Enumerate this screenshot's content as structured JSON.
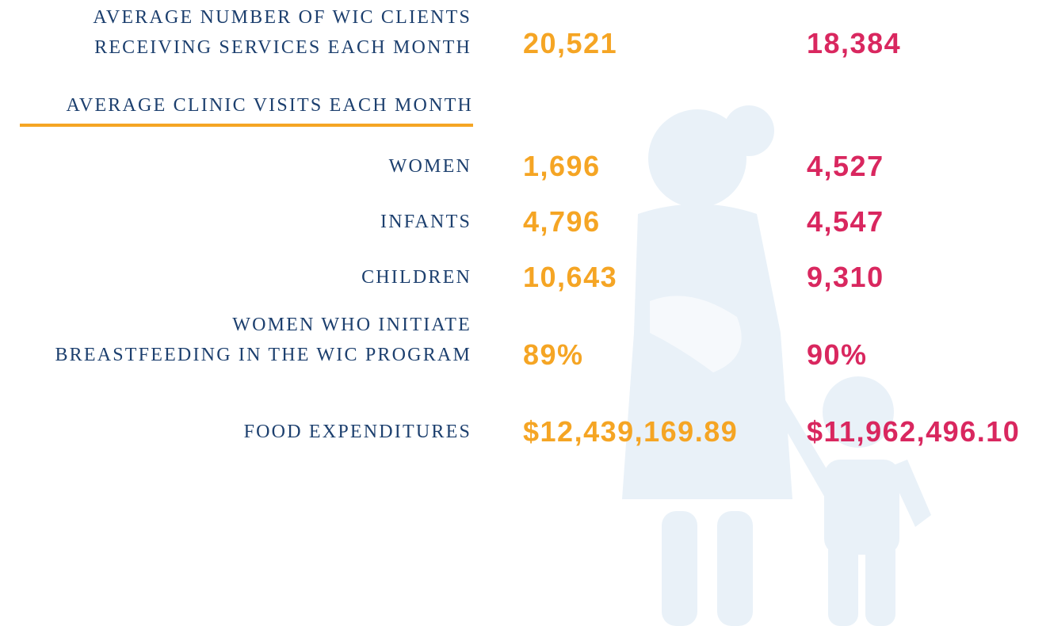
{
  "first_row": {
    "label": [
      "AVERAGE NUMBER OF WIC CLIENTS",
      "RECEIVING SERVICES EACH MONTH"
    ],
    "values": [
      "20,521",
      "18,384"
    ]
  },
  "section": "AVERAGE CLINIC VISITS EACH MONTH",
  "rows": [
    {
      "label": [
        "WOMEN"
      ],
      "values": [
        "1,696",
        "4,527"
      ]
    },
    {
      "label": [
        "INFANTS"
      ],
      "values": [
        "4,796",
        "4,547"
      ]
    },
    {
      "label": [
        "CHILDREN"
      ],
      "values": [
        "10,643",
        "9,310"
      ]
    },
    {
      "label": [
        "WOMEN WHO INITIATE",
        "BREASTFEEDING IN THE WIC PROGRAM"
      ],
      "values": [
        "89%",
        "90%"
      ]
    },
    {
      "label": [
        "FOOD EXPENDITURES"
      ],
      "values": [
        "$12,439,169.89",
        "$11,962,496.10"
      ]
    }
  ]
}
